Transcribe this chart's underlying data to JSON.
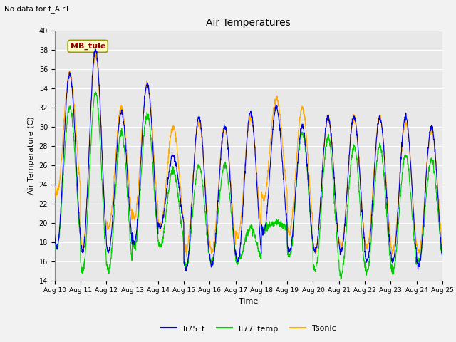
{
  "title": "Air Temperatures",
  "xlabel": "Time",
  "ylabel": "Air Temperature (C)",
  "note": "No data for f_AirT",
  "mb_tule_label": "MB_tule",
  "ylim": [
    14,
    40
  ],
  "xlim": [
    0,
    15
  ],
  "xtick_labels": [
    "Aug 10",
    "Aug 11",
    "Aug 12",
    "Aug 13",
    "Aug 14",
    "Aug 15",
    "Aug 16",
    "Aug 17",
    "Aug 18",
    "Aug 19",
    "Aug 20",
    "Aug 21",
    "Aug 22",
    "Aug 23",
    "Aug 24",
    "Aug 25"
  ],
  "xtick_positions": [
    0,
    1,
    2,
    3,
    4,
    5,
    6,
    7,
    8,
    9,
    10,
    11,
    12,
    13,
    14,
    15
  ],
  "ytick_positions": [
    14,
    16,
    18,
    20,
    22,
    24,
    26,
    28,
    30,
    32,
    34,
    36,
    38,
    40
  ],
  "colors": {
    "li75_t": "#0000dd",
    "li77_temp": "#00cc00",
    "Tsonic": "#ffaa00",
    "ax_background": "#e8e8e8",
    "fig_background": "#f2f2f2",
    "grid": "#ffffff"
  },
  "legend": [
    "li75_t",
    "li77_temp",
    "Tsonic"
  ],
  "peaks_blue": [
    35.5,
    38.0,
    31.5,
    34.5,
    27.0,
    31.0,
    30.0,
    31.5,
    32.0,
    30.0,
    31.0,
    31.0,
    31.0,
    31.0,
    30.0
  ],
  "troughs_blue": [
    17.5,
    17.0,
    17.0,
    18.0,
    19.5,
    15.2,
    15.5,
    16.0,
    19.0,
    17.0,
    17.0,
    17.0,
    16.0,
    16.0,
    15.5
  ],
  "peaks_green": [
    32.0,
    33.5,
    29.5,
    31.2,
    25.5,
    26.0,
    26.0,
    19.5,
    20.0,
    29.5,
    29.0,
    28.0,
    28.0,
    27.0,
    26.5
  ],
  "troughs_green": [
    17.5,
    15.0,
    15.0,
    17.5,
    17.5,
    15.5,
    16.0,
    16.0,
    19.5,
    16.5,
    15.0,
    14.5,
    15.0,
    15.0,
    16.0
  ],
  "peaks_orange": [
    35.5,
    37.5,
    32.0,
    34.5,
    30.0,
    30.5,
    30.0,
    31.0,
    33.0,
    32.0,
    31.0,
    31.0,
    31.0,
    30.5,
    29.5
  ],
  "troughs_orange": [
    23.0,
    17.5,
    19.5,
    20.5,
    19.5,
    17.0,
    17.0,
    18.5,
    22.5,
    19.0,
    17.0,
    17.5,
    17.5,
    17.0,
    17.0
  ]
}
